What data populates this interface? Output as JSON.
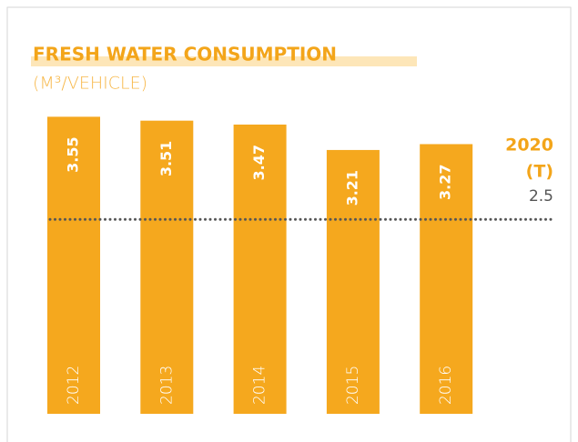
{
  "chart_data": {
    "type": "bar",
    "title": "FRESH WATER CONSUMPTION",
    "subtitle": "(M³/VEHICLE)",
    "categories": [
      "2012",
      "2013",
      "2014",
      "2015",
      "2016"
    ],
    "values": [
      3.55,
      3.51,
      3.47,
      3.21,
      3.27
    ],
    "color": "#f5a81e",
    "ylim": [
      0,
      4
    ],
    "target": {
      "year": "2020",
      "label": "(T)",
      "value": 2.5
    }
  }
}
